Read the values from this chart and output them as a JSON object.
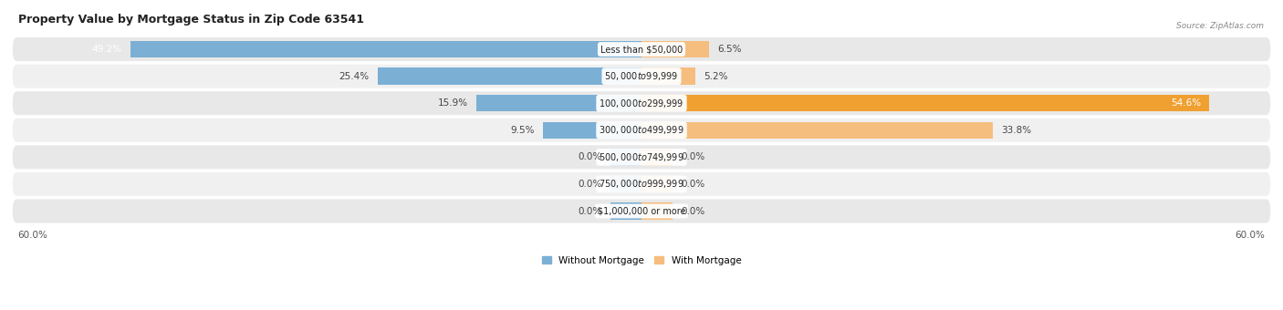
{
  "title": "Property Value by Mortgage Status in Zip Code 63541",
  "source": "Source: ZipAtlas.com",
  "categories": [
    "Less than $50,000",
    "$50,000 to $99,999",
    "$100,000 to $299,999",
    "$300,000 to $499,999",
    "$500,000 to $749,999",
    "$750,000 to $999,999",
    "$1,000,000 or more"
  ],
  "without_mortgage": [
    49.2,
    25.4,
    15.9,
    9.5,
    0.0,
    0.0,
    0.0
  ],
  "with_mortgage": [
    6.5,
    5.2,
    54.6,
    33.8,
    0.0,
    0.0,
    0.0
  ],
  "color_without": "#7BAFD4",
  "color_with": "#F5BE7E",
  "color_with_strong": "#F0A030",
  "xlim": 60.0,
  "bar_height": 0.62,
  "row_colors": [
    "#E8E8E8",
    "#F0F0F0",
    "#E8E8E8",
    "#F0F0F0",
    "#E8E8E8",
    "#F0F0F0",
    "#E8E8E8"
  ],
  "title_fontsize": 9,
  "val_fontsize": 7.5,
  "cat_fontsize": 7,
  "legend_fontsize": 7.5,
  "axis_fontsize": 7.5,
  "zero_bar_stub": 3.0
}
